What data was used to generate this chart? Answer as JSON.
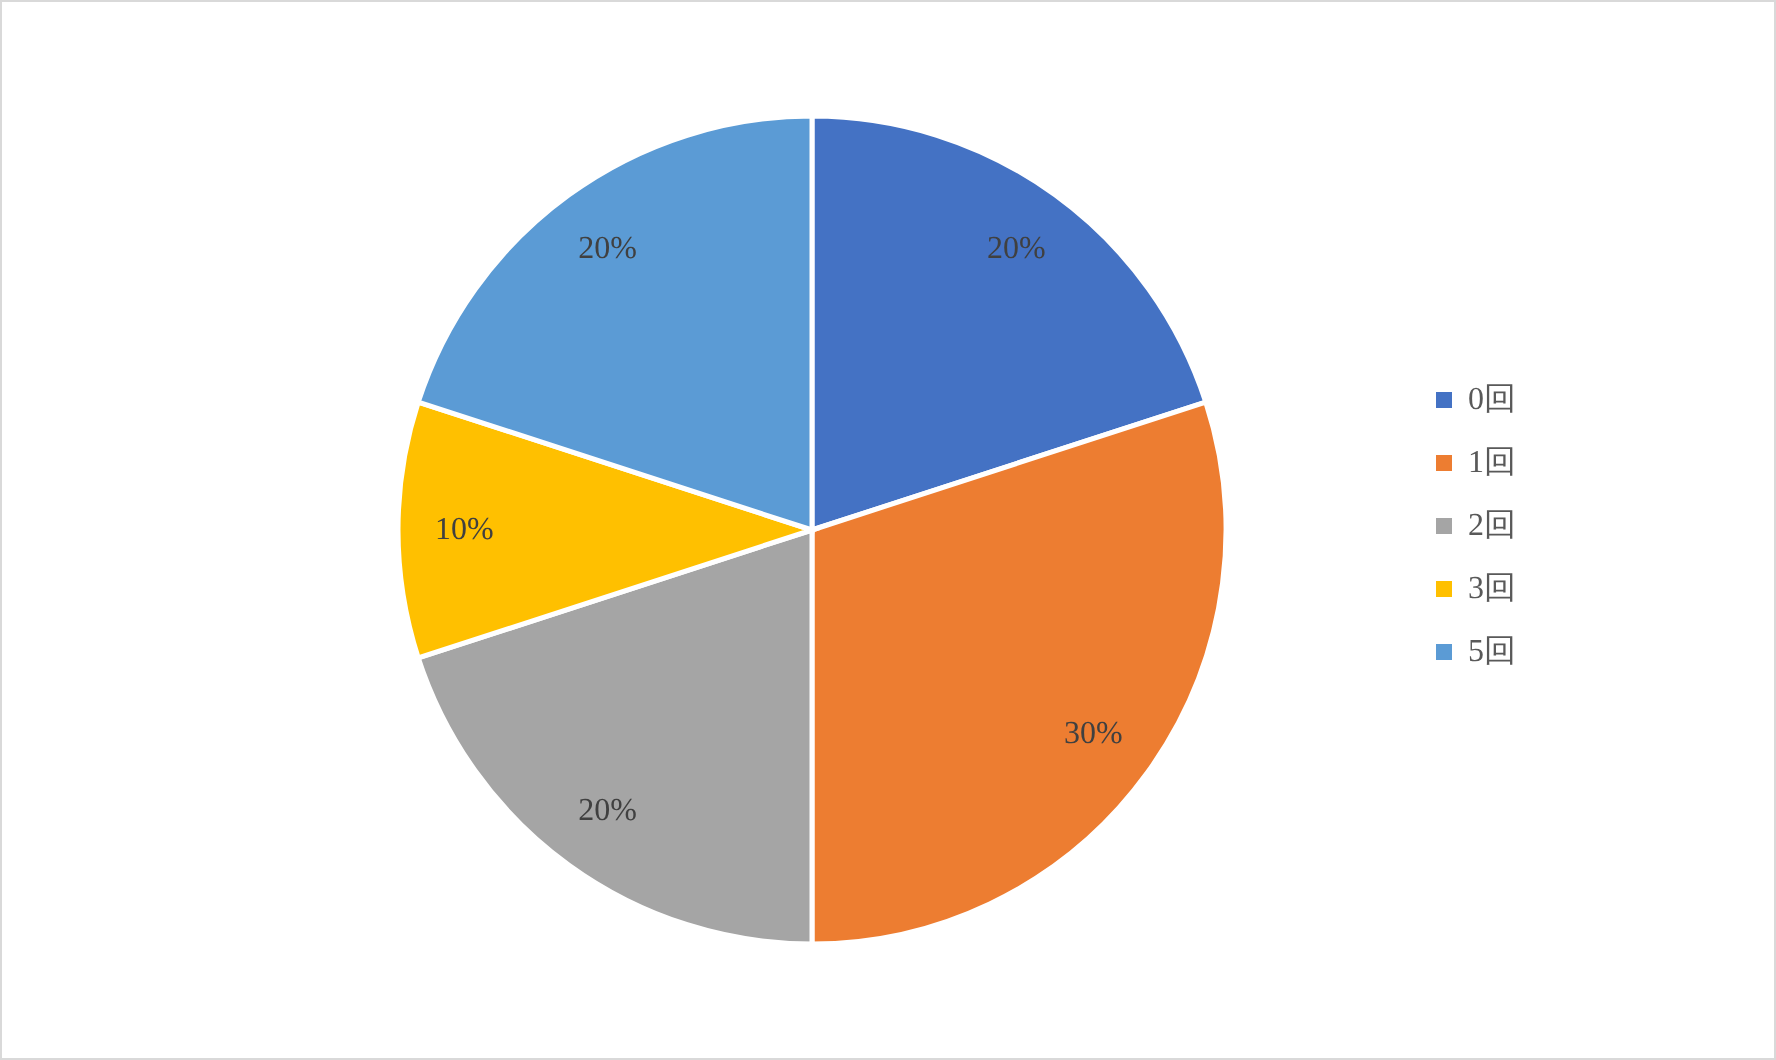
{
  "chart_data": {
    "type": "pie",
    "categories": [
      "0回",
      "1回",
      "2回",
      "3回",
      "5回"
    ],
    "values": [
      20,
      30,
      20,
      10,
      20
    ],
    "colors": [
      "#4472c4",
      "#ed7d31",
      "#a5a5a5",
      "#ffc000",
      "#5b9bd5"
    ],
    "value_labels": [
      "20%",
      "30%",
      "20%",
      "10%",
      "20%"
    ],
    "legend": "right"
  }
}
